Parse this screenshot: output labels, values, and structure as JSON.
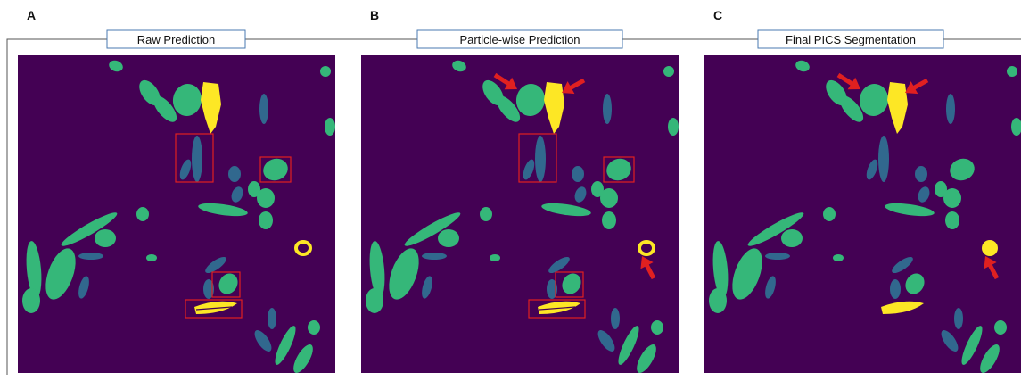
{
  "panels": [
    {
      "letter": "A",
      "title": "Raw Prediction"
    },
    {
      "letter": "B",
      "title": "Particle-wise Prediction"
    },
    {
      "letter": "C",
      "title": "Final PICS Segmentation"
    }
  ]
}
